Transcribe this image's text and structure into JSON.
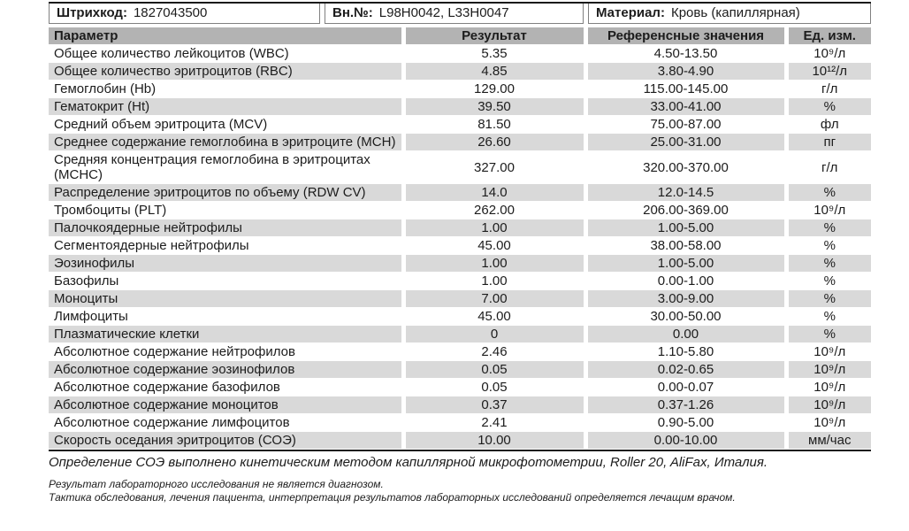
{
  "meta": {
    "barcode_label": "Штрихкод:",
    "barcode_value": "1827043500",
    "internal_no_label": "Вн.№:",
    "internal_no_value": "L98H0042, L33H0047",
    "material_label": "Материал:",
    "material_value": "Кровь (капиллярная)"
  },
  "table": {
    "columns": [
      "Параметр",
      "Результат",
      "Референсные значения",
      "Ед. изм."
    ],
    "rows": [
      {
        "param": "Общее количество лейкоцитов (WBC)",
        "result": "5.35",
        "ref": "4.50-13.50",
        "unit": "10⁹/л"
      },
      {
        "param": "Общее количество эритроцитов (RBC)",
        "result": "4.85",
        "ref": "3.80-4.90",
        "unit": "10¹²/л"
      },
      {
        "param": "Гемоглобин (Hb)",
        "result": "129.00",
        "ref": "115.00-145.00",
        "unit": "г/л"
      },
      {
        "param": "Гематокрит (Ht)",
        "result": "39.50",
        "ref": "33.00-41.00",
        "unit": "%"
      },
      {
        "param": "Средний объем эритроцита (MCV)",
        "result": "81.50",
        "ref": "75.00-87.00",
        "unit": "фл"
      },
      {
        "param": "Среднее содержание гемоглобина в эритроците (MCH)",
        "result": "26.60",
        "ref": "25.00-31.00",
        "unit": "пг"
      },
      {
        "param": "Средняя концентрация гемоглобина в эритроцитах\n(MCHC)",
        "result": "327.00",
        "ref": "320.00-370.00",
        "unit": "г/л"
      },
      {
        "param": "Распределение эритроцитов по объему (RDW CV)",
        "result": "14.0",
        "ref": "12.0-14.5",
        "unit": "%"
      },
      {
        "param": "Тромбоциты (PLT)",
        "result": "262.00",
        "ref": "206.00-369.00",
        "unit": "10⁹/л"
      },
      {
        "param": "Палочкоядерные нейтрофилы",
        "result": "1.00",
        "ref": "1.00-5.00",
        "unit": "%"
      },
      {
        "param": "Сегментоядерные нейтрофилы",
        "result": "45.00",
        "ref": "38.00-58.00",
        "unit": "%"
      },
      {
        "param": "Эозинофилы",
        "result": "1.00",
        "ref": "1.00-5.00",
        "unit": "%"
      },
      {
        "param": "Базофилы",
        "result": "1.00",
        "ref": "0.00-1.00",
        "unit": "%"
      },
      {
        "param": "Моноциты",
        "result": "7.00",
        "ref": "3.00-9.00",
        "unit": "%"
      },
      {
        "param": "Лимфоциты",
        "result": "45.00",
        "ref": "30.00-50.00",
        "unit": "%"
      },
      {
        "param": "Плазматические клетки",
        "result": "0",
        "ref": "0.00",
        "unit": "%"
      },
      {
        "param": "Абсолютное содержание нейтрофилов",
        "result": "2.46",
        "ref": "1.10-5.80",
        "unit": "10⁹/л"
      },
      {
        "param": "Абсолютное содержание эозинофилов",
        "result": "0.05",
        "ref": "0.02-0.65",
        "unit": "10⁹/л"
      },
      {
        "param": "Абсолютное содержание базофилов",
        "result": "0.05",
        "ref": "0.00-0.07",
        "unit": "10⁹/л"
      },
      {
        "param": "Абсолютное содержание моноцитов",
        "result": "0.37",
        "ref": "0.37-1.26",
        "unit": "10⁹/л"
      },
      {
        "param": "Абсолютное содержание лимфоцитов",
        "result": "2.41",
        "ref": "0.90-5.00",
        "unit": "10⁹/л"
      },
      {
        "param": "Скорость оседания эритроцитов (СОЭ)",
        "result": "10.00",
        "ref": "0.00-10.00",
        "unit": "мм/час"
      }
    ]
  },
  "footnotes": {
    "soe_method": "Определение СОЭ выполнено кинетическим методом капиллярной микрофотометрии, Roller 20, AliFax, Италия.",
    "disclaimer1": "Результат лабораторного исследования не является диагнозом.",
    "disclaimer2": "Тактика обследования, лечения пациента, интерпретация результатов лабораторных исследований определяется лечащим врачом."
  },
  "colors": {
    "header-bg": "#b3b3b3",
    "shade-bg": "#d9d9d9",
    "line-dark": "#1a1a1a",
    "info-border": "#808080",
    "text": "#1c1c1c"
  }
}
